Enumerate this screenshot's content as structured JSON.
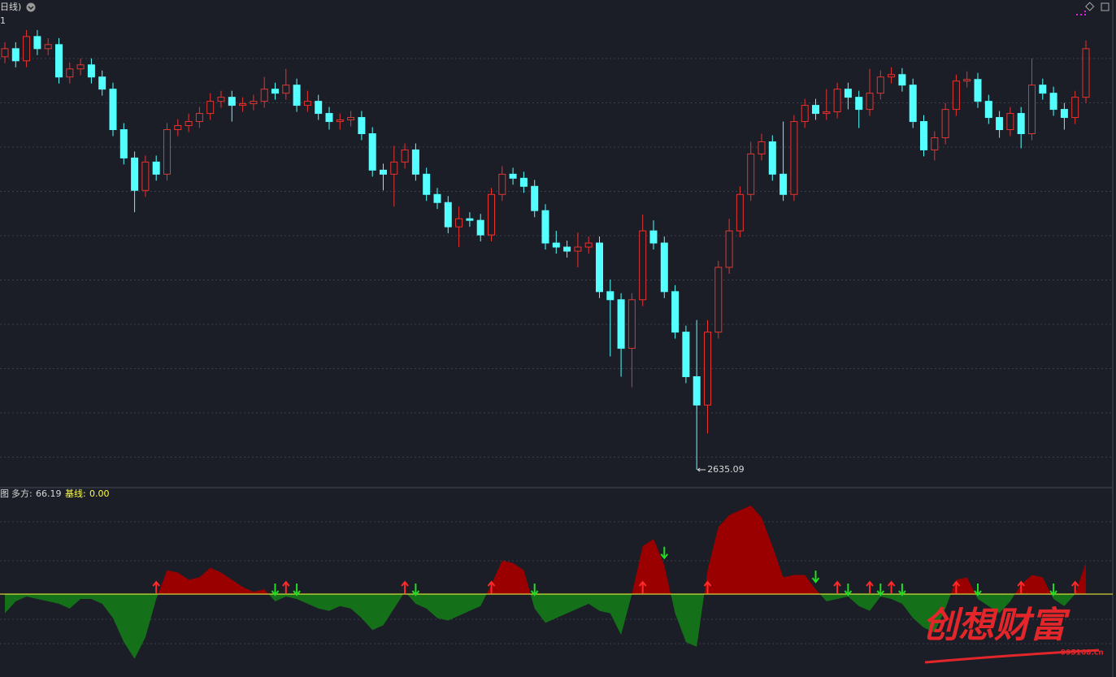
{
  "chart_data": [
    {
      "type": "candlestick",
      "title": "日线)",
      "subtitle": "1",
      "ylim": [
        2615,
        3195
      ],
      "up_color": "#e8332f",
      "down_color": "#54ffff",
      "candles": [
        [
          3145,
          3163,
          3137,
          3155
        ],
        [
          3155,
          3163,
          3132,
          3140
        ],
        [
          3140,
          3178,
          3132,
          3170
        ],
        [
          3170,
          3178,
          3147,
          3155
        ],
        [
          3155,
          3168,
          3147,
          3160
        ],
        [
          3160,
          3168,
          3112,
          3120
        ],
        [
          3120,
          3138,
          3112,
          3130
        ],
        [
          3130,
          3143,
          3122,
          3135
        ],
        [
          3135,
          3143,
          3112,
          3120
        ],
        [
          3120,
          3128,
          3097,
          3105
        ],
        [
          3105,
          3113,
          3047,
          3055
        ],
        [
          3055,
          3063,
          3012,
          3020
        ],
        [
          3020,
          3028,
          2953,
          2980
        ],
        [
          2980,
          3023,
          2972,
          3015
        ],
        [
          3015,
          3023,
          2992,
          3000
        ],
        [
          3000,
          3063,
          2992,
          3055
        ],
        [
          3055,
          3068,
          3047,
          3060
        ],
        [
          3060,
          3075,
          3052,
          3065
        ],
        [
          3065,
          3083,
          3057,
          3075
        ],
        [
          3075,
          3100,
          3067,
          3090
        ],
        [
          3090,
          3103,
          3082,
          3095
        ],
        [
          3095,
          3103,
          3065,
          3085
        ],
        [
          3085,
          3095,
          3077,
          3087
        ],
        [
          3087,
          3098,
          3079,
          3090
        ],
        [
          3090,
          3120,
          3082,
          3105
        ],
        [
          3105,
          3113,
          3092,
          3100
        ],
        [
          3100,
          3130,
          3092,
          3110
        ],
        [
          3110,
          3118,
          3077,
          3085
        ],
        [
          3085,
          3103,
          3077,
          3090
        ],
        [
          3090,
          3098,
          3067,
          3075
        ],
        [
          3075,
          3083,
          3055,
          3065
        ],
        [
          3065,
          3075,
          3055,
          3067
        ],
        [
          3067,
          3078,
          3059,
          3070
        ],
        [
          3070,
          3078,
          3042,
          3050
        ],
        [
          3050,
          3058,
          2997,
          3005
        ],
        [
          3005,
          3013,
          2980,
          3000
        ],
        [
          3000,
          3035,
          2960,
          3015
        ],
        [
          3015,
          3038,
          3007,
          3030
        ],
        [
          3030,
          3038,
          2992,
          3000
        ],
        [
          3000,
          3008,
          2967,
          2975
        ],
        [
          2975,
          2983,
          2957,
          2965
        ],
        [
          2965,
          2973,
          2927,
          2935
        ],
        [
          2935,
          2960,
          2910,
          2945
        ],
        [
          2945,
          2953,
          2935,
          2943
        ],
        [
          2943,
          2951,
          2917,
          2925
        ],
        [
          2925,
          2983,
          2917,
          2975
        ],
        [
          2975,
          3010,
          2967,
          3000
        ],
        [
          3000,
          3008,
          2987,
          2995
        ],
        [
          2995,
          3003,
          2977,
          2985
        ],
        [
          2985,
          2993,
          2947,
          2955
        ],
        [
          2955,
          2963,
          2907,
          2915
        ],
        [
          2915,
          2930,
          2902,
          2910
        ],
        [
          2910,
          2918,
          2897,
          2905
        ],
        [
          2905,
          2928,
          2885,
          2910
        ],
        [
          2910,
          2923,
          2902,
          2915
        ],
        [
          2915,
          2923,
          2847,
          2855
        ],
        [
          2855,
          2870,
          2775,
          2845
        ],
        [
          2845,
          2853,
          2750,
          2785
        ],
        [
          2785,
          2853,
          2737,
          2845
        ],
        [
          2845,
          2950,
          2837,
          2930
        ],
        [
          2930,
          2943,
          2907,
          2915
        ],
        [
          2915,
          2923,
          2847,
          2855
        ],
        [
          2855,
          2863,
          2797,
          2805
        ],
        [
          2805,
          2813,
          2742,
          2750
        ],
        [
          2750,
          2820,
          2635.09,
          2715
        ],
        [
          2715,
          2820,
          2680,
          2805
        ],
        [
          2805,
          2893,
          2797,
          2885
        ],
        [
          2885,
          2945,
          2877,
          2930
        ],
        [
          2930,
          2985,
          2922,
          2975
        ],
        [
          2975,
          3040,
          2967,
          3025
        ],
        [
          3025,
          3050,
          3017,
          3040
        ],
        [
          3040,
          3048,
          2992,
          3000
        ],
        [
          3000,
          3065,
          2967,
          2975
        ],
        [
          2975,
          3073,
          2967,
          3065
        ],
        [
          3065,
          3093,
          3057,
          3085
        ],
        [
          3085,
          3093,
          3067,
          3075
        ],
        [
          3075,
          3105,
          3067,
          3077
        ],
        [
          3077,
          3113,
          3069,
          3105
        ],
        [
          3105,
          3113,
          3080,
          3095
        ],
        [
          3095,
          3103,
          3057,
          3080
        ],
        [
          3080,
          3130,
          3072,
          3100
        ],
        [
          3100,
          3128,
          3092,
          3120
        ],
        [
          3120,
          3132,
          3112,
          3123
        ],
        [
          3123,
          3131,
          3102,
          3110
        ],
        [
          3110,
          3118,
          3057,
          3065
        ],
        [
          3065,
          3073,
          3022,
          3030
        ],
        [
          3030,
          3053,
          3017,
          3045
        ],
        [
          3045,
          3088,
          3037,
          3080
        ],
        [
          3080,
          3123,
          3072,
          3115
        ],
        [
          3115,
          3127,
          3107,
          3117
        ],
        [
          3117,
          3125,
          3082,
          3090
        ],
        [
          3090,
          3098,
          3062,
          3070
        ],
        [
          3070,
          3078,
          3045,
          3055
        ],
        [
          3055,
          3083,
          3047,
          3075
        ],
        [
          3075,
          3083,
          3032,
          3050
        ],
        [
          3050,
          3143,
          3042,
          3110
        ],
        [
          3110,
          3118,
          3092,
          3100
        ],
        [
          3100,
          3108,
          3072,
          3080
        ],
        [
          3080,
          3088,
          3055,
          3070
        ],
        [
          3070,
          3103,
          3062,
          3095
        ],
        [
          3095,
          3165,
          3088,
          3155
        ]
      ],
      "low_label_index": 64
    },
    {
      "type": "area",
      "title": "图",
      "ylim": [
        -173,
        219
      ],
      "series": [
        {
          "name": "多方:",
          "up_color": "#9a0000",
          "down_color": "#15701a",
          "values": [
            -40,
            -15,
            -5,
            -10,
            -15,
            -20,
            -30,
            -10,
            -10,
            -20,
            -50,
            -100,
            -135,
            -90,
            -10,
            50,
            45,
            30,
            35,
            55,
            45,
            30,
            15,
            5,
            10,
            -15,
            -5,
            -10,
            -20,
            -30,
            -35,
            -25,
            -30,
            -50,
            -75,
            -65,
            -30,
            5,
            -20,
            -30,
            -50,
            -55,
            -45,
            -35,
            -25,
            20,
            70,
            65,
            50,
            -30,
            -60,
            -50,
            -40,
            -30,
            -20,
            -35,
            -40,
            -85,
            0,
            100,
            115,
            60,
            -40,
            -100,
            -110,
            50,
            140,
            165,
            175,
            185,
            160,
            100,
            35,
            40,
            40,
            10,
            -15,
            -10,
            -5,
            -25,
            -35,
            -5,
            -10,
            -20,
            -50,
            -70,
            -80,
            -30,
            30,
            35,
            -10,
            -25,
            -40,
            -15,
            20,
            40,
            35,
            -10,
            -25,
            0,
            66.19
          ]
        }
      ],
      "baseline": {
        "name": "基线:",
        "value": 0,
        "label": "0.00",
        "color": "#ffff40"
      },
      "buy_signals": [
        14,
        26,
        37,
        45,
        59,
        65,
        77,
        80,
        82,
        88,
        94,
        99
      ],
      "sell_signals": [
        25,
        27,
        38,
        49,
        61,
        75,
        78,
        81,
        83,
        90,
        97
      ],
      "buy_color": "#ff2a2a",
      "sell_color": "#22dd22"
    }
  ],
  "watermark": {
    "text": "创想财富",
    "url": "995168.cn"
  }
}
